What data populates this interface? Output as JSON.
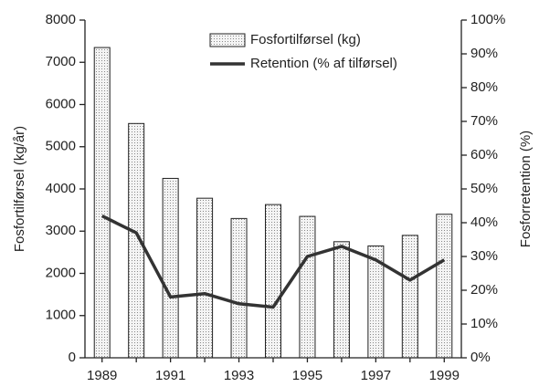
{
  "chart_data": {
    "type": "bar-line",
    "categories": [
      "1989",
      null,
      "1991",
      null,
      "1993",
      null,
      "1995",
      null,
      "1997",
      null,
      "1999"
    ],
    "series": [
      {
        "name": "Fosfortilførsel (kg)",
        "type": "bar",
        "color": "#d9d9d9",
        "values": [
          7350,
          5550,
          4250,
          3780,
          3300,
          3630,
          3350,
          2750,
          2650,
          2900,
          3400
        ]
      },
      {
        "name": "Retention (% af tilførsel)",
        "type": "line",
        "axis": "y2",
        "color": "#333333",
        "values": [
          42,
          37,
          18,
          19,
          16,
          15,
          30,
          33,
          29,
          23,
          29
        ]
      }
    ],
    "ylabel": "Fosfortilførsel (kg/år)",
    "y2label": "Fosforretention (%)",
    "ylim": [
      0,
      8000
    ],
    "yticks": [
      0,
      1000,
      2000,
      3000,
      4000,
      5000,
      6000,
      7000,
      8000
    ],
    "y2lim": [
      0,
      100
    ],
    "y2ticks": [
      {
        "value": 0,
        "label": "0%"
      },
      {
        "value": 10,
        "label": "10%"
      },
      {
        "value": 20,
        "label": "20%"
      },
      {
        "value": 30,
        "label": "30%"
      },
      {
        "value": 40,
        "label": "40%"
      },
      {
        "value": 50,
        "label": "50%"
      },
      {
        "value": 60,
        "label": "60%"
      },
      {
        "value": 70,
        "label": "70%"
      },
      {
        "value": 80,
        "label": "80%"
      },
      {
        "value": 90,
        "label": "90%"
      },
      {
        "value": 100,
        "label": "100%"
      }
    ],
    "legend": "top"
  }
}
